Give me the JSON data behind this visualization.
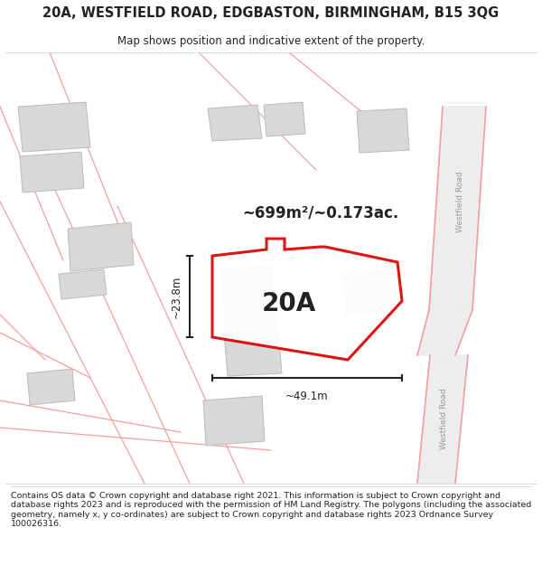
{
  "title_line1": "20A, WESTFIELD ROAD, EDGBASTON, BIRMINGHAM, B15 3QG",
  "title_line2": "Map shows position and indicative extent of the property.",
  "footer": "Contains OS data © Crown copyright and database right 2021. This information is subject to Crown copyright and database rights 2023 and is reproduced with the permission of HM Land Registry. The polygons (including the associated geometry, namely x, y co-ordinates) are subject to Crown copyright and database rights 2023 Ordnance Survey 100026316.",
  "area_label": "~699m²/~0.173ac.",
  "label_20A": "20A",
  "dim_vertical": "~23.8m",
  "dim_horizontal": "~49.1m",
  "road_label": "Westfield Road",
  "map_bg": "#f7f6f4",
  "property_color": "#dd0000",
  "building_color": "#d8d8d8",
  "road_line_color": "#f0a0a0",
  "road_fill": "#eeeeee",
  "dim_color": "#222222",
  "text_color": "#222222",
  "road_text_color": "#999999"
}
